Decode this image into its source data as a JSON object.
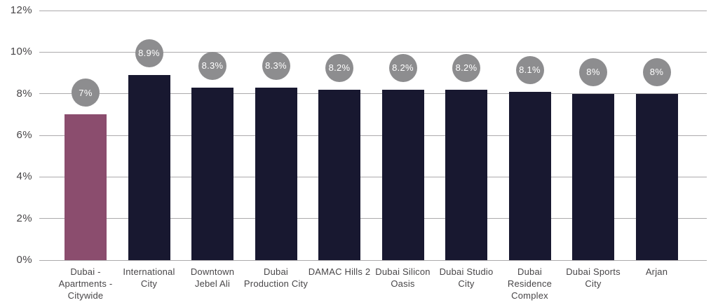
{
  "chart_data": {
    "type": "bar",
    "title": "",
    "xlabel": "",
    "ylabel": "",
    "categories": [
      "Dubai - Apartments - Citywide",
      "International City",
      "Downtown Jebel Ali",
      "Dubai Production City",
      "DAMAC Hills 2",
      "Dubai Silicon Oasis",
      "Dubai Studio City",
      "Dubai Residence Complex",
      "Dubai Sports City",
      "Arjan"
    ],
    "values": [
      7,
      8.9,
      8.3,
      8.3,
      8.2,
      8.2,
      8.2,
      8.1,
      8,
      8
    ],
    "data_labels": [
      "7%",
      "8.9%",
      "8.3%",
      "8.3%",
      "8.2%",
      "8.2%",
      "8.2%",
      "8.1%",
      "8%",
      "8%"
    ],
    "ylim": [
      0,
      12
    ],
    "ytick_labels": [
      "0%",
      "2%",
      "4%",
      "6%",
      "8%",
      "10%",
      "12%"
    ],
    "grid": true,
    "legend": false,
    "highlight_index": 0,
    "colors": {
      "bar_default": "#181830",
      "bar_highlight": "#8B4D6E",
      "data_label_bubble": "#8D8D8F",
      "data_label_text": "#FFFFFF",
      "gridline": "#ACAAAC",
      "axis_text": "#484648"
    }
  }
}
